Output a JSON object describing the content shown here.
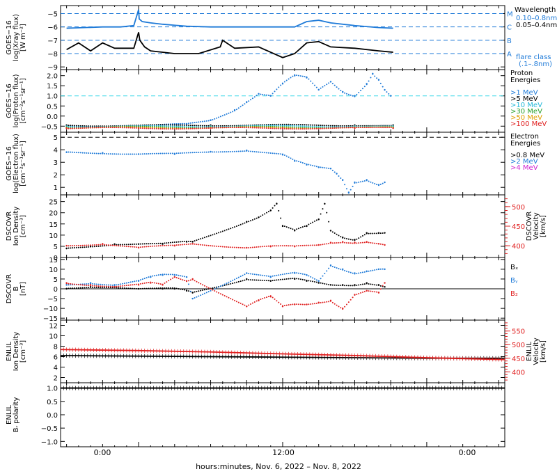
{
  "time_axis": {
    "ticks": [
      "0:00",
      "12:00",
      "0:00"
    ],
    "title": "hours:minutes, Nov.  6, 2022 – Nov.  8, 2022"
  },
  "colors": {
    "black": "#000000",
    "blue": "#1e7ad8",
    "cyan": "#22b8d8",
    "green": "#2aa02a",
    "orange": "#e0a000",
    "red": "#e02020",
    "magenta": "#d020d0",
    "dashed_blue": "#1e7ad8",
    "dashed_cyan": "#40d8e8"
  },
  "chart_data": [
    {
      "id": "xray",
      "type": "line",
      "ylabel": [
        "GOES−16",
        "log(Xray flux)",
        "[W m⁻²]"
      ],
      "yticks": [
        "−5",
        "−6",
        "−7",
        "−8",
        "−9"
      ],
      "ylim": [
        -9.2,
        -4.4
      ],
      "legend_title": "Wavelength",
      "legend": [
        "0.10–0.8nm",
        "0.05–0.4nm"
      ],
      "flare_class_labels": [
        "M",
        "C",
        "B",
        "A"
      ],
      "flare_class_levels": [
        -5,
        -6,
        -7,
        -8
      ],
      "flare_class_note": [
        "flare class",
        "(.1–.8nm)"
      ],
      "series": [
        {
          "name": "0.10–0.8nm",
          "color": "#1e7ad8",
          "x": [
            -6,
            -3,
            -1.5,
            -0.4,
            0,
            0.05,
            0.3,
            1,
            2,
            4,
            6,
            8,
            10,
            12,
            13,
            14,
            15,
            16,
            18,
            20,
            21.2
          ],
          "y": [
            -6.1,
            -6.0,
            -6.0,
            -5.9,
            -4.7,
            -5.4,
            -5.6,
            -5.7,
            -5.8,
            -5.95,
            -6.0,
            -6.0,
            -6.0,
            -6.0,
            -6.0,
            -5.6,
            -5.5,
            -5.7,
            -5.9,
            -6.05,
            -6.1
          ]
        },
        {
          "name": "0.05–0.4nm",
          "color": "#000000",
          "x": [
            -6,
            -5,
            -4,
            -3,
            -2,
            -0.4,
            0,
            0.1,
            0.5,
            1,
            3,
            5,
            6.8,
            7,
            8,
            10,
            11,
            12,
            13,
            14,
            15,
            16,
            18,
            20,
            21.2
          ],
          "y": [
            -7.7,
            -7.2,
            -7.8,
            -7.2,
            -7.6,
            -7.6,
            -6.4,
            -7.0,
            -7.5,
            -7.8,
            -8.0,
            -8.0,
            -7.5,
            -7.0,
            -7.6,
            -7.5,
            -7.9,
            -8.3,
            -8.0,
            -7.2,
            -7.1,
            -7.5,
            -7.6,
            -7.8,
            -7.9
          ]
        }
      ]
    },
    {
      "id": "proton",
      "type": "scatter",
      "ylabel": [
        "GOES−16",
        "log(Proton flux)",
        "[cm⁻²s⁻¹sr⁻¹]"
      ],
      "yticks": [
        "2.0",
        "1.5",
        "1.0",
        "0.5",
        "0.0",
        "−0.5"
      ],
      "ylim": [
        -0.8,
        2.3
      ],
      "legend_title": [
        "Proton",
        "Energies"
      ],
      "legend": [
        ">1 MeV",
        ">5 MeV",
        ">10 MeV",
        ">30 MeV",
        ">50 MeV",
        ">100 MeV"
      ],
      "series": [
        {
          "name": ">1 MeV",
          "color": "#1e7ad8",
          "x": [
            -6,
            -2,
            0,
            4,
            6,
            8,
            9,
            10,
            11,
            12,
            13,
            14,
            15,
            16,
            17,
            18,
            19,
            19.5,
            20,
            20.5,
            21
          ],
          "y": [
            -0.5,
            -0.5,
            -0.5,
            -0.4,
            -0.2,
            0.3,
            0.7,
            1.1,
            1.0,
            1.6,
            2.0,
            1.9,
            1.3,
            1.7,
            1.2,
            1.0,
            1.6,
            2.1,
            1.8,
            1.3,
            1.0
          ]
        },
        {
          "name": ">5 MeV",
          "color": "#000000",
          "x": [
            -6,
            0,
            6,
            12,
            18,
            21.2
          ],
          "y": [
            -0.45,
            -0.48,
            -0.45,
            -0.45,
            -0.45,
            -0.45
          ]
        },
        {
          "name": ">10 MeV",
          "color": "#22b8d8",
          "x": [
            -6,
            0,
            6,
            12,
            18,
            21.2
          ],
          "y": [
            -0.5,
            -0.52,
            -0.5,
            -0.5,
            -0.5,
            -0.5
          ]
        },
        {
          "name": ">30 MeV",
          "color": "#2aa02a",
          "x": [
            -6,
            0,
            6,
            12,
            18,
            21.2
          ],
          "y": [
            -0.55,
            -0.55,
            -0.55,
            -0.55,
            -0.55,
            -0.55
          ]
        },
        {
          "name": ">50 MeV",
          "color": "#e0a000",
          "x": [
            -6,
            0,
            6,
            12,
            18,
            21.2
          ],
          "y": [
            -0.58,
            -0.58,
            -0.58,
            -0.58,
            -0.58,
            -0.58
          ]
        },
        {
          "name": ">100 MeV",
          "color": "#e02020",
          "x": [
            -6,
            0,
            6,
            12,
            18,
            21.2
          ],
          "y": [
            -0.6,
            -0.6,
            -0.6,
            -0.6,
            -0.6,
            -0.6
          ]
        }
      ],
      "reference_level": 1.0
    },
    {
      "id": "electron",
      "type": "scatter",
      "ylabel": [
        "GOES−16",
        "log(Electron flux)",
        "[cm⁻²s⁻¹sr⁻¹]"
      ],
      "yticks": [
        "5",
        "4",
        "3",
        "2",
        "1"
      ],
      "ylim": [
        0.4,
        5.4
      ],
      "legend_title": [
        "Electron",
        "Energies"
      ],
      "legend": [
        ">0.8 MeV",
        ">2 MeV",
        ">4 MeV"
      ],
      "series": [
        {
          "name": ">2 MeV",
          "color": "#1e7ad8",
          "x": [
            -6,
            -3,
            0,
            3,
            6,
            9,
            12,
            13,
            14,
            15,
            16,
            16.5,
            17,
            17.5,
            18,
            19,
            20,
            20.5
          ],
          "y": [
            3.8,
            3.75,
            3.65,
            3.65,
            3.85,
            3.95,
            3.6,
            3.1,
            2.8,
            2.6,
            2.5,
            2.1,
            1.6,
            0.6,
            1.4,
            1.6,
            1.2,
            1.4
          ]
        }
      ],
      "reference_level": 5.0
    },
    {
      "id": "dscovr_density",
      "type": "scatter",
      "ylabel": [
        "DSCOVR",
        "Ion Density",
        "[cm⁻³]"
      ],
      "yticks": [
        "25",
        "20",
        "15",
        "10",
        "5",
        "0"
      ],
      "ylim": [
        0,
        28
      ],
      "right_ylabel": [
        "DSCOVR",
        "Velocity",
        "[km/s]"
      ],
      "right_yticks": [
        "500",
        "450",
        "400"
      ],
      "right_ylim": [
        370,
        530
      ],
      "series": [
        {
          "name": "density",
          "color": "#000000",
          "x": [
            -6,
            -4,
            -2,
            0,
            2,
            4,
            4.5,
            9,
            10,
            11,
            11.5,
            12,
            13,
            14,
            15,
            15.5,
            16,
            17,
            18,
            19,
            20,
            20.5
          ],
          "y": [
            4,
            5,
            6,
            6,
            6,
            7,
            7,
            16,
            18,
            21,
            24,
            14,
            12,
            14,
            17,
            24,
            12,
            9,
            8,
            11,
            11,
            11
          ]
        },
        {
          "name": "velocity",
          "color": "#e02020",
          "x": [
            -6,
            -3,
            0,
            3,
            4.5,
            9,
            11,
            13,
            15,
            16,
            17,
            18,
            19,
            20,
            20.5
          ],
          "y": [
            400,
            405,
            395,
            400,
            405,
            395,
            398,
            398,
            402,
            408,
            410,
            408,
            410,
            405,
            402
          ]
        }
      ]
    },
    {
      "id": "dscovr_b",
      "type": "scatter",
      "ylabel": [
        "DSCOVR",
        "B",
        "[nT]"
      ],
      "yticks": [
        "15",
        "10",
        "5",
        "0",
        "−5",
        "−10",
        "−15"
      ],
      "ylim": [
        -16,
        16
      ],
      "legend": [
        "Bₓ",
        "Bᵧ",
        "B₂"
      ],
      "series": [
        {
          "name": "Bₓ",
          "color": "#000000",
          "x": [
            -6,
            -4,
            -2,
            0,
            2,
            3,
            4,
            4.5,
            9,
            11,
            13,
            14,
            15,
            16,
            17,
            18,
            19,
            20,
            20.5
          ],
          "y": [
            0,
            1,
            1,
            0,
            0,
            0,
            -1,
            -2,
            5,
            4,
            5,
            4,
            3,
            2,
            2,
            2,
            3,
            2,
            1
          ]
        },
        {
          "name": "Bᵧ",
          "color": "#1e7ad8",
          "x": [
            -6,
            -4,
            -2,
            0,
            1,
            2,
            3,
            4,
            4.5,
            9,
            11,
            13,
            14,
            15,
            16,
            17,
            18,
            19,
            20,
            20.5
          ],
          "y": [
            2,
            3,
            2,
            4,
            6,
            7,
            7,
            6,
            -5,
            8,
            6,
            8,
            7,
            4,
            12,
            10,
            8,
            9,
            10,
            10
          ]
        },
        {
          "name": "B₂",
          "color": "#e02020",
          "x": [
            -6,
            -4,
            -2,
            0,
            1,
            2,
            3,
            4,
            4.5,
            9,
            10,
            11,
            12,
            13,
            14,
            15,
            16,
            17,
            18,
            19,
            20,
            20.5
          ],
          "y": [
            3,
            2,
            1,
            2,
            3,
            2,
            6,
            4,
            5,
            -9,
            -6,
            -4,
            -9,
            -8,
            -8,
            -7,
            -6,
            -10,
            -3,
            -1,
            -2,
            3
          ]
        }
      ]
    },
    {
      "id": "enlil_density",
      "type": "line",
      "ylabel": [
        "ENLIL",
        "Ion Density",
        "[cm⁻³]"
      ],
      "yticks": [
        "12",
        "10",
        "8",
        "6",
        "4",
        "2"
      ],
      "ylim": [
        1,
        13
      ],
      "right_ylabel": [
        "ENLIL",
        "Velocity",
        "[km/s]"
      ],
      "right_yticks": [
        "550",
        "500",
        "450",
        "400"
      ],
      "right_ylim": [
        360,
        590
      ],
      "series": [
        {
          "name": "density",
          "color": "#000000",
          "x": [
            -6.5,
            0,
            6,
            12,
            18,
            24,
            30.5
          ],
          "y": [
            6.2,
            6.1,
            6.0,
            5.9,
            5.8,
            5.7,
            5.7
          ]
        },
        {
          "name": "velocity",
          "color": "#e02020",
          "x": [
            -6.5,
            0,
            6,
            12,
            18,
            24,
            30.5
          ],
          "y": [
            482,
            478,
            473,
            466,
            460,
            452,
            445
          ]
        }
      ]
    },
    {
      "id": "enlil_polarity",
      "type": "line",
      "ylabel": [
        "ENLIL",
        "Bᵣ polarity"
      ],
      "yticks": [
        "1.0",
        "0.5",
        "0.0",
        "−0.5",
        "−1.0"
      ],
      "ylim": [
        -1.2,
        1.2
      ],
      "series": [
        {
          "name": "polarity",
          "color": "#000000",
          "x": [
            -6.5,
            30.5
          ],
          "y": [
            1.0,
            1.0
          ]
        }
      ]
    }
  ]
}
